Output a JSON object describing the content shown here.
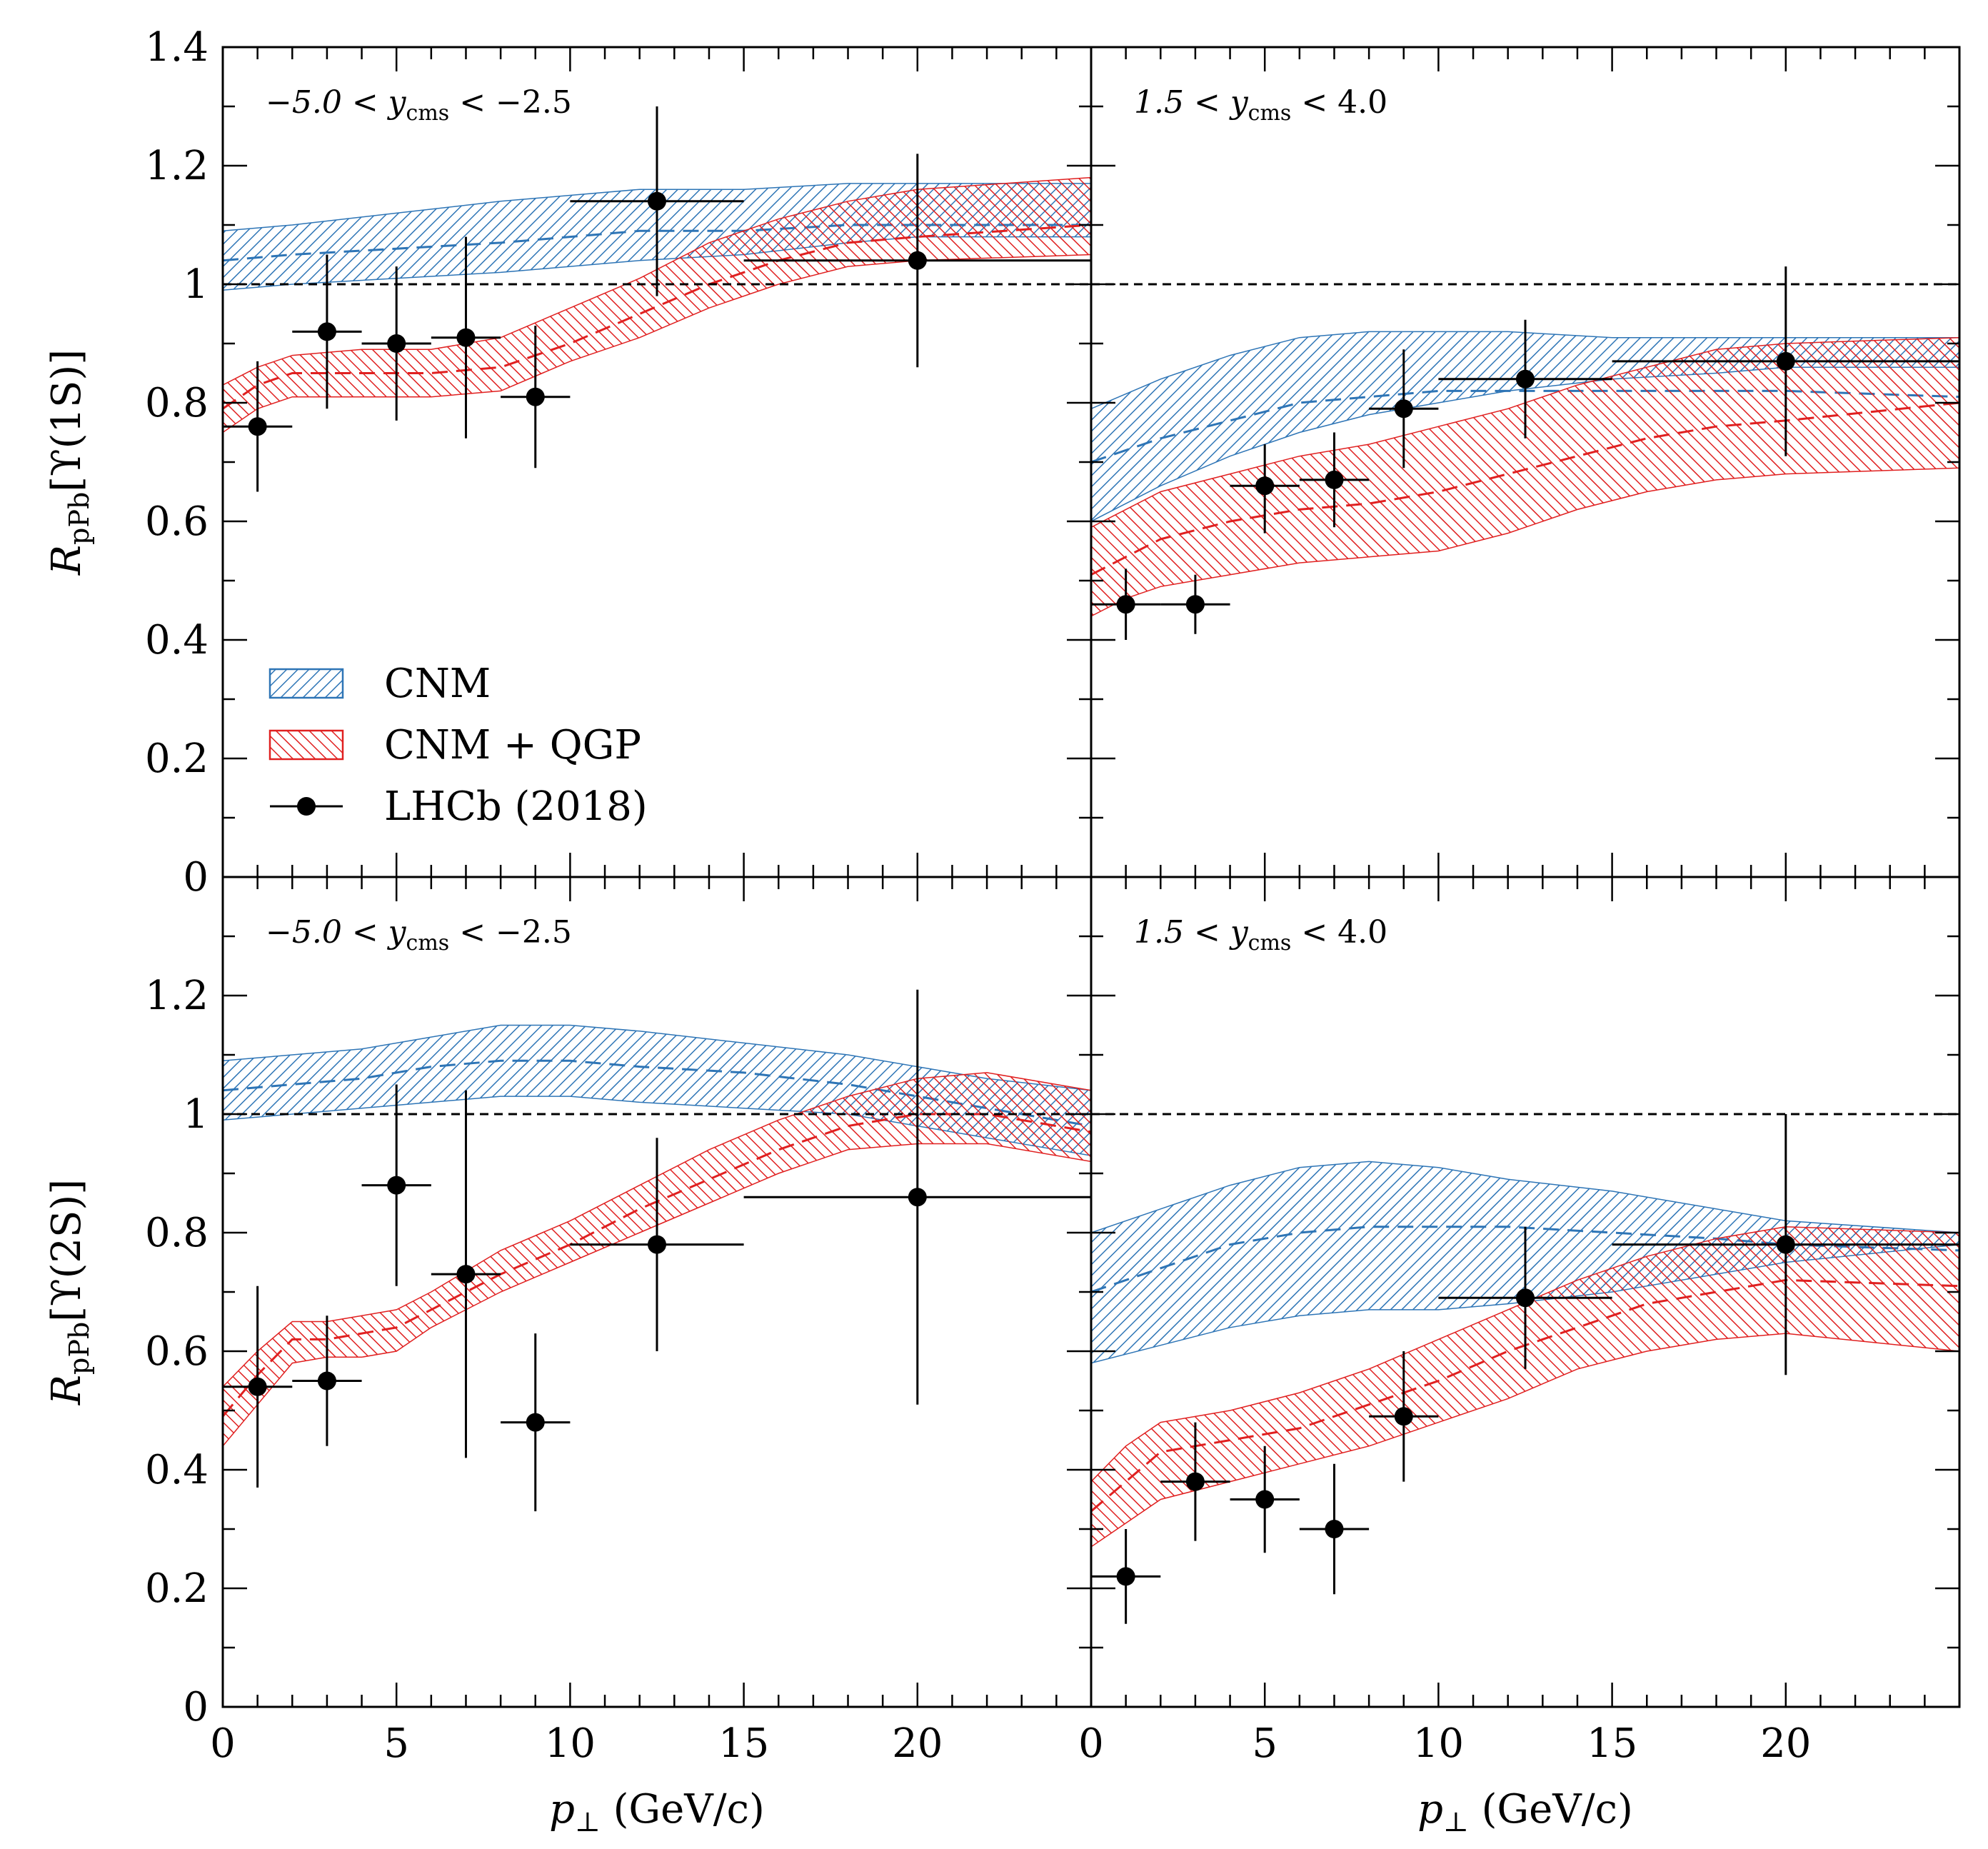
{
  "figure": {
    "x_title": {
      "main": "p",
      "sub": "⊥",
      "unit": " (GeV/c)"
    },
    "y_title_row1": {
      "main": "R",
      "sub": "pPb",
      "rest": "[ϒ(1S)]"
    },
    "y_title_row2": {
      "main": "R",
      "sub": "pPb",
      "rest": "[ϒ(2S)]"
    },
    "x_ticks": [
      "0",
      "5",
      "10",
      "15",
      "20"
    ],
    "y_ticks_top": [
      "0",
      "0.2",
      "0.4",
      "0.6",
      "0.8",
      "1",
      "1.2",
      "1.4"
    ],
    "y_ticks_bottom": [
      "0",
      "0.2",
      "0.4",
      "0.6",
      "0.8",
      "1",
      "1.2"
    ],
    "colors": {
      "cnm": "#2e75b6",
      "qgp": "#e02020",
      "data": "#000000"
    }
  },
  "legend": [
    {
      "key": "cnm",
      "label": "CNM"
    },
    {
      "key": "qgp",
      "label": "CNM + QGP"
    },
    {
      "key": "data",
      "label": "LHCb (2018)"
    }
  ],
  "chart_data": [
    {
      "type": "line",
      "panel": "Upsilon(1S), backward",
      "label": {
        "pre": "−5.0 < y",
        "sub": "cms",
        "post": " < −2.5"
      },
      "xlim": [
        0,
        25
      ],
      "ylim": [
        0,
        1.4
      ],
      "bands": [
        {
          "name": "CNM",
          "x": [
            0,
            2,
            5,
            8,
            10,
            12,
            15,
            18,
            20,
            25
          ],
          "lower": [
            0.99,
            1.0,
            1.01,
            1.02,
            1.03,
            1.04,
            1.05,
            1.07,
            1.08,
            1.08
          ],
          "central": [
            1.04,
            1.05,
            1.06,
            1.07,
            1.08,
            1.09,
            1.09,
            1.1,
            1.1,
            1.1
          ],
          "upper": [
            1.09,
            1.1,
            1.12,
            1.14,
            1.15,
            1.16,
            1.16,
            1.17,
            1.17,
            1.17
          ]
        },
        {
          "name": "CNM + QGP",
          "x": [
            0,
            1,
            2,
            4,
            6,
            8,
            10,
            12,
            14,
            16,
            18,
            20,
            25
          ],
          "lower": [
            0.75,
            0.79,
            0.81,
            0.81,
            0.81,
            0.82,
            0.87,
            0.91,
            0.96,
            1.0,
            1.03,
            1.04,
            1.05
          ],
          "central": [
            0.79,
            0.83,
            0.85,
            0.85,
            0.85,
            0.86,
            0.9,
            0.95,
            1.0,
            1.04,
            1.07,
            1.08,
            1.1
          ],
          "upper": [
            0.83,
            0.86,
            0.88,
            0.89,
            0.89,
            0.91,
            0.96,
            1.01,
            1.07,
            1.11,
            1.14,
            1.16,
            1.18
          ]
        }
      ],
      "points": [
        {
          "x": 1,
          "xlo": 0,
          "xhi": 2,
          "y": 0.76,
          "ylo": 0.65,
          "yhi": 0.87
        },
        {
          "x": 3,
          "xlo": 2,
          "xhi": 4,
          "y": 0.92,
          "ylo": 0.79,
          "yhi": 1.05
        },
        {
          "x": 5,
          "xlo": 4,
          "xhi": 6,
          "y": 0.9,
          "ylo": 0.77,
          "yhi": 1.03
        },
        {
          "x": 7,
          "xlo": 6,
          "xhi": 8,
          "y": 0.91,
          "ylo": 0.74,
          "yhi": 1.08
        },
        {
          "x": 9,
          "xlo": 8,
          "xhi": 10,
          "y": 0.81,
          "ylo": 0.69,
          "yhi": 0.93
        },
        {
          "x": 12.5,
          "xlo": 10,
          "xhi": 15,
          "y": 1.14,
          "ylo": 0.98,
          "yhi": 1.3
        },
        {
          "x": 20,
          "xlo": 15,
          "xhi": 25,
          "y": 1.04,
          "ylo": 0.86,
          "yhi": 1.22
        }
      ]
    },
    {
      "type": "line",
      "panel": "Upsilon(1S), forward",
      "label": {
        "pre": "1.5 < y",
        "sub": "cms",
        "post": " < 4.0"
      },
      "xlim": [
        0,
        25
      ],
      "ylim": [
        0,
        1.4
      ],
      "bands": [
        {
          "name": "CNM",
          "x": [
            0,
            2,
            4,
            6,
            8,
            10,
            12,
            15,
            18,
            20,
            25
          ],
          "lower": [
            0.6,
            0.66,
            0.71,
            0.75,
            0.78,
            0.8,
            0.82,
            0.84,
            0.85,
            0.86,
            0.86
          ],
          "central": [
            0.7,
            0.74,
            0.77,
            0.8,
            0.81,
            0.82,
            0.82,
            0.82,
            0.82,
            0.82,
            0.81
          ],
          "upper": [
            0.79,
            0.84,
            0.88,
            0.91,
            0.92,
            0.92,
            0.92,
            0.91,
            0.91,
            0.91,
            0.91
          ]
        },
        {
          "name": "CNM + QGP",
          "x": [
            0,
            1,
            2,
            4,
            6,
            8,
            10,
            12,
            14,
            16,
            18,
            20,
            25
          ],
          "lower": [
            0.44,
            0.47,
            0.49,
            0.51,
            0.53,
            0.54,
            0.55,
            0.58,
            0.62,
            0.65,
            0.67,
            0.68,
            0.69
          ],
          "central": [
            0.51,
            0.54,
            0.57,
            0.6,
            0.62,
            0.63,
            0.65,
            0.68,
            0.71,
            0.74,
            0.76,
            0.77,
            0.8
          ],
          "upper": [
            0.59,
            0.62,
            0.65,
            0.68,
            0.71,
            0.73,
            0.76,
            0.79,
            0.83,
            0.86,
            0.89,
            0.9,
            0.91
          ]
        }
      ],
      "points": [
        {
          "x": 1,
          "xlo": 0,
          "xhi": 2,
          "y": 0.46,
          "ylo": 0.4,
          "yhi": 0.52
        },
        {
          "x": 3,
          "xlo": 2,
          "xhi": 4,
          "y": 0.46,
          "ylo": 0.41,
          "yhi": 0.51
        },
        {
          "x": 5,
          "xlo": 4,
          "xhi": 6,
          "y": 0.66,
          "ylo": 0.58,
          "yhi": 0.73
        },
        {
          "x": 7,
          "xlo": 6,
          "xhi": 8,
          "y": 0.67,
          "ylo": 0.59,
          "yhi": 0.75
        },
        {
          "x": 9,
          "xlo": 8,
          "xhi": 10,
          "y": 0.79,
          "ylo": 0.69,
          "yhi": 0.89
        },
        {
          "x": 12.5,
          "xlo": 10,
          "xhi": 15,
          "y": 0.84,
          "ylo": 0.74,
          "yhi": 0.94
        },
        {
          "x": 20,
          "xlo": 15,
          "xhi": 25,
          "y": 0.87,
          "ylo": 0.71,
          "yhi": 1.03
        }
      ]
    },
    {
      "type": "line",
      "panel": "Upsilon(2S), backward",
      "label": {
        "pre": "−5.0 < y",
        "sub": "cms",
        "post": " < −2.5"
      },
      "xlim": [
        0,
        25
      ],
      "ylim": [
        0,
        1.4
      ],
      "bands": [
        {
          "name": "CNM",
          "x": [
            0,
            2,
            4,
            6,
            8,
            10,
            12,
            15,
            18,
            20,
            22,
            25
          ],
          "lower": [
            0.99,
            1.0,
            1.01,
            1.02,
            1.03,
            1.03,
            1.02,
            1.01,
            1.0,
            0.98,
            0.96,
            0.93
          ],
          "central": [
            1.04,
            1.05,
            1.06,
            1.08,
            1.09,
            1.09,
            1.08,
            1.07,
            1.05,
            1.03,
            1.01,
            0.98
          ],
          "upper": [
            1.09,
            1.1,
            1.11,
            1.13,
            1.15,
            1.15,
            1.14,
            1.12,
            1.1,
            1.08,
            1.06,
            1.04
          ]
        },
        {
          "name": "CNM + QGP",
          "x": [
            0,
            1,
            2,
            3,
            4,
            5,
            6,
            8,
            10,
            12,
            14,
            16,
            18,
            20,
            22,
            25
          ],
          "lower": [
            0.44,
            0.51,
            0.58,
            0.59,
            0.59,
            0.6,
            0.64,
            0.7,
            0.75,
            0.8,
            0.85,
            0.9,
            0.94,
            0.95,
            0.95,
            0.92
          ],
          "central": [
            0.49,
            0.56,
            0.62,
            0.62,
            0.63,
            0.64,
            0.67,
            0.73,
            0.78,
            0.84,
            0.89,
            0.94,
            0.98,
            1.0,
            1.0,
            0.97
          ],
          "upper": [
            0.54,
            0.6,
            0.65,
            0.65,
            0.66,
            0.67,
            0.7,
            0.77,
            0.82,
            0.88,
            0.94,
            0.99,
            1.03,
            1.06,
            1.07,
            1.04
          ]
        }
      ],
      "points": [
        {
          "x": 1,
          "xlo": 0,
          "xhi": 2,
          "y": 0.54,
          "ylo": 0.37,
          "yhi": 0.71
        },
        {
          "x": 3,
          "xlo": 2,
          "xhi": 4,
          "y": 0.55,
          "ylo": 0.44,
          "yhi": 0.66
        },
        {
          "x": 5,
          "xlo": 4,
          "xhi": 6,
          "y": 0.88,
          "ylo": 0.71,
          "yhi": 1.05
        },
        {
          "x": 7,
          "xlo": 6,
          "xhi": 8,
          "y": 0.73,
          "ylo": 0.42,
          "yhi": 1.04
        },
        {
          "x": 9,
          "xlo": 8,
          "xhi": 10,
          "y": 0.48,
          "ylo": 0.33,
          "yhi": 0.63
        },
        {
          "x": 12.5,
          "xlo": 10,
          "xhi": 15,
          "y": 0.78,
          "ylo": 0.6,
          "yhi": 0.96
        },
        {
          "x": 20,
          "xlo": 15,
          "xhi": 25,
          "y": 0.86,
          "ylo": 0.51,
          "yhi": 1.21
        }
      ]
    },
    {
      "type": "line",
      "panel": "Upsilon(2S), forward",
      "label": {
        "pre": "1.5 < y",
        "sub": "cms",
        "post": " < 4.0"
      },
      "xlim": [
        0,
        25
      ],
      "ylim": [
        0,
        1.4
      ],
      "bands": [
        {
          "name": "CNM",
          "x": [
            0,
            2,
            4,
            6,
            8,
            10,
            12,
            15,
            18,
            20,
            25
          ],
          "lower": [
            0.58,
            0.61,
            0.64,
            0.66,
            0.67,
            0.67,
            0.68,
            0.7,
            0.73,
            0.75,
            0.78
          ],
          "central": [
            0.7,
            0.74,
            0.78,
            0.8,
            0.81,
            0.81,
            0.81,
            0.8,
            0.79,
            0.78,
            0.77
          ],
          "upper": [
            0.8,
            0.84,
            0.88,
            0.91,
            0.92,
            0.91,
            0.89,
            0.87,
            0.84,
            0.82,
            0.8
          ]
        },
        {
          "name": "CNM + QGP",
          "x": [
            0,
            1,
            2,
            4,
            6,
            8,
            10,
            12,
            14,
            16,
            18,
            20,
            25
          ],
          "lower": [
            0.27,
            0.31,
            0.35,
            0.38,
            0.41,
            0.44,
            0.48,
            0.52,
            0.57,
            0.6,
            0.62,
            0.63,
            0.6
          ],
          "central": [
            0.33,
            0.38,
            0.43,
            0.45,
            0.47,
            0.51,
            0.55,
            0.6,
            0.64,
            0.68,
            0.7,
            0.72,
            0.71
          ],
          "upper": [
            0.38,
            0.44,
            0.48,
            0.5,
            0.53,
            0.57,
            0.62,
            0.67,
            0.72,
            0.76,
            0.79,
            0.81,
            0.8
          ]
        }
      ],
      "points": [
        {
          "x": 1,
          "xlo": 0,
          "xhi": 2,
          "y": 0.22,
          "ylo": 0.14,
          "yhi": 0.3
        },
        {
          "x": 3,
          "xlo": 2,
          "xhi": 4,
          "y": 0.38,
          "ylo": 0.28,
          "yhi": 0.48
        },
        {
          "x": 5,
          "xlo": 4,
          "xhi": 6,
          "y": 0.35,
          "ylo": 0.26,
          "yhi": 0.44
        },
        {
          "x": 7,
          "xlo": 6,
          "xhi": 8,
          "y": 0.3,
          "ylo": 0.19,
          "yhi": 0.41
        },
        {
          "x": 9,
          "xlo": 8,
          "xhi": 10,
          "y": 0.49,
          "ylo": 0.38,
          "yhi": 0.6
        },
        {
          "x": 12.5,
          "xlo": 10,
          "xhi": 15,
          "y": 0.69,
          "ylo": 0.57,
          "yhi": 0.81
        },
        {
          "x": 20,
          "xlo": 15,
          "xhi": 25,
          "y": 0.78,
          "ylo": 0.56,
          "yhi": 1.0
        }
      ]
    }
  ]
}
